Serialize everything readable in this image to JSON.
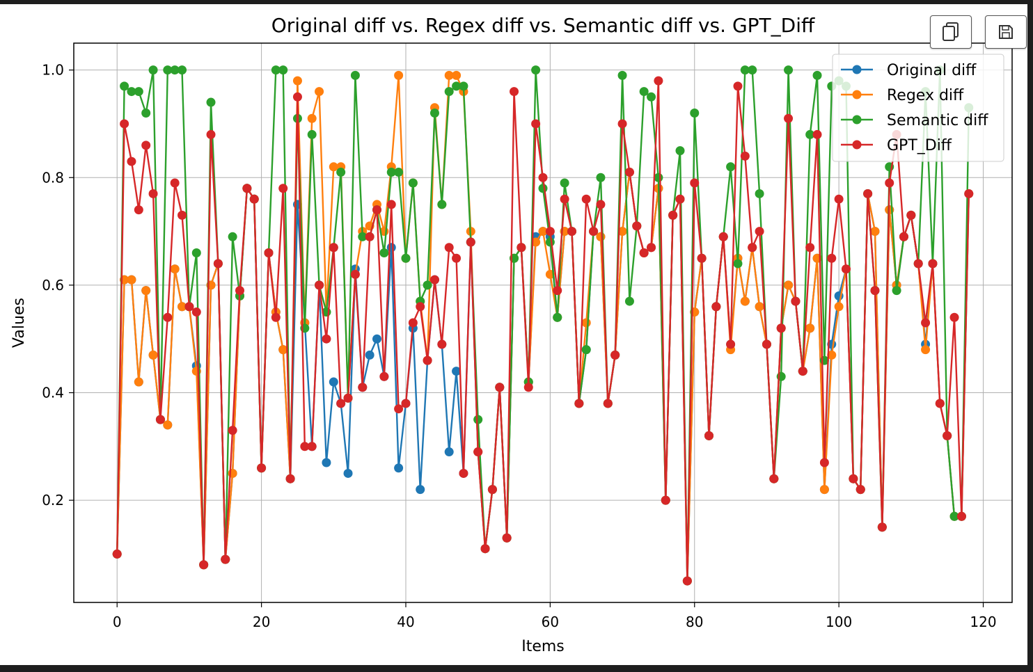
{
  "toolbar": {
    "copy_icon": "copy-icon",
    "save_icon": "floppy-disk-icon"
  },
  "chart_data": {
    "type": "line",
    "title": "Original diff vs. Regex diff vs. Semantic diff vs. GPT_Diff",
    "xlabel": "Items",
    "ylabel": "Values",
    "xlim": [
      -6,
      124
    ],
    "ylim": [
      0.01,
      1.05
    ],
    "xticks": [
      "0",
      "20",
      "40",
      "60",
      "80",
      "100",
      "120"
    ],
    "yticks": [
      "0.2",
      "0.4",
      "0.6",
      "0.8",
      "1.0"
    ],
    "grid": true,
    "legend_position": "upper-right",
    "series": [
      {
        "name": "Original diff",
        "color": "#1f77b4",
        "values": [
          0.1,
          0.61,
          0.61,
          0.42,
          0.59,
          0.47,
          0.35,
          0.34,
          0.63,
          0.56,
          0.56,
          0.45,
          0.08,
          0.6,
          0.64,
          0.09,
          0.25,
          0.58,
          0.78,
          0.76,
          0.26,
          0.66,
          0.55,
          0.48,
          0.24,
          0.75,
          0.53,
          0.3,
          0.6,
          0.27,
          0.42,
          0.38,
          0.25,
          0.63,
          0.41,
          0.47,
          0.5,
          0.43,
          0.67,
          0.26,
          0.38,
          0.52,
          0.22,
          0.46,
          0.61,
          0.49,
          0.29,
          0.44,
          0.25,
          0.68,
          0.29,
          0.11,
          0.22,
          0.41,
          0.13,
          0.65,
          0.67,
          0.42,
          0.69,
          0.7,
          0.69,
          0.54,
          0.7,
          0.7,
          0.38,
          0.48,
          0.7,
          0.69,
          0.38,
          0.47,
          0.7,
          0.81,
          0.71,
          0.66,
          0.67,
          0.78,
          0.2,
          0.73,
          0.76,
          0.05,
          0.55,
          0.65,
          0.32,
          0.56,
          0.69,
          0.49,
          0.65,
          0.57,
          0.67,
          0.56,
          0.49,
          0.24,
          0.52,
          0.6,
          0.57,
          0.44,
          0.52,
          0.65,
          0.22,
          0.49,
          0.58,
          0.63,
          0.24,
          0.22,
          0.77,
          0.7,
          0.15,
          0.74,
          0.6,
          0.69,
          0.73,
          0.64,
          0.49,
          0.64,
          0.38,
          0.32,
          0.17,
          0.17,
          0.77
        ]
      },
      {
        "name": "Regex diff",
        "color": "#ff7f0e",
        "values": [
          0.1,
          0.61,
          0.61,
          0.42,
          0.59,
          0.47,
          0.35,
          0.34,
          0.63,
          0.56,
          0.56,
          0.44,
          0.08,
          0.6,
          0.64,
          0.09,
          0.25,
          0.58,
          0.78,
          0.76,
          0.26,
          0.66,
          0.55,
          0.48,
          0.24,
          0.98,
          0.53,
          0.91,
          0.96,
          0.55,
          0.82,
          0.82,
          0.39,
          0.62,
          0.7,
          0.71,
          0.75,
          0.7,
          0.82,
          0.99,
          0.65,
          0.79,
          0.57,
          0.46,
          0.93,
          0.75,
          0.99,
          0.99,
          0.96,
          0.7,
          0.29,
          0.11,
          0.22,
          0.41,
          0.13,
          0.65,
          0.67,
          0.42,
          0.68,
          0.7,
          0.62,
          0.54,
          0.7,
          0.7,
          0.38,
          0.53,
          0.7,
          0.69,
          0.38,
          0.47,
          0.7,
          0.81,
          0.71,
          0.66,
          0.67,
          0.78,
          0.2,
          0.73,
          0.76,
          0.05,
          0.55,
          0.65,
          0.32,
          0.56,
          0.69,
          0.48,
          0.65,
          0.57,
          0.67,
          0.56,
          0.49,
          0.24,
          0.52,
          0.6,
          0.57,
          0.44,
          0.52,
          0.65,
          0.22,
          0.47,
          0.56,
          0.63,
          0.24,
          0.22,
          0.77,
          0.7,
          0.15,
          0.74,
          0.6,
          0.69,
          0.73,
          0.64,
          0.48,
          0.64,
          0.38,
          0.32,
          0.17,
          0.17,
          0.77
        ]
      },
      {
        "name": "Semantic diff",
        "color": "#2ca02c",
        "values": [
          0.1,
          0.97,
          0.96,
          0.96,
          0.92,
          1.0,
          0.35,
          1.0,
          1.0,
          1.0,
          0.56,
          0.66,
          0.08,
          0.94,
          0.64,
          0.09,
          0.69,
          0.58,
          0.78,
          0.76,
          0.26,
          0.66,
          1.0,
          1.0,
          0.24,
          0.91,
          0.52,
          0.88,
          0.6,
          0.55,
          0.67,
          0.81,
          0.39,
          0.99,
          0.69,
          0.69,
          0.74,
          0.66,
          0.81,
          0.81,
          0.65,
          0.79,
          0.57,
          0.6,
          0.92,
          0.75,
          0.96,
          0.97,
          0.97,
          0.68,
          0.35,
          0.11,
          0.22,
          0.41,
          0.13,
          0.65,
          0.67,
          0.42,
          1.0,
          0.78,
          0.68,
          0.54,
          0.79,
          0.7,
          0.38,
          0.48,
          0.7,
          0.8,
          0.38,
          0.47,
          0.99,
          0.57,
          0.71,
          0.96,
          0.95,
          0.8,
          0.2,
          0.73,
          0.85,
          0.05,
          0.92,
          0.65,
          0.32,
          0.56,
          0.69,
          0.82,
          0.64,
          1.0,
          1.0,
          0.77,
          0.49,
          0.24,
          0.43,
          1.0,
          0.57,
          0.44,
          0.88,
          0.99,
          0.46,
          0.97,
          0.98,
          0.97,
          0.24,
          0.22,
          0.77,
          0.59,
          0.15,
          0.82,
          0.59,
          0.69,
          0.73,
          0.64,
          0.96,
          0.64,
          1.0,
          0.32,
          0.17,
          0.17,
          0.93
        ]
      },
      {
        "name": "GPT_Diff",
        "color": "#d62728",
        "values": [
          0.1,
          0.9,
          0.83,
          0.74,
          0.86,
          0.77,
          0.35,
          0.54,
          0.79,
          0.73,
          0.56,
          0.55,
          0.08,
          0.88,
          0.64,
          0.09,
          0.33,
          0.59,
          0.78,
          0.76,
          0.26,
          0.66,
          0.54,
          0.78,
          0.24,
          0.95,
          0.3,
          0.3,
          0.6,
          0.5,
          0.67,
          0.38,
          0.39,
          0.62,
          0.41,
          0.69,
          0.74,
          0.43,
          0.75,
          0.37,
          0.38,
          0.53,
          0.56,
          0.46,
          0.61,
          0.49,
          0.67,
          0.65,
          0.25,
          0.68,
          0.29,
          0.11,
          0.22,
          0.41,
          0.13,
          0.96,
          0.67,
          0.41,
          0.9,
          0.8,
          0.7,
          0.59,
          0.76,
          0.7,
          0.38,
          0.76,
          0.7,
          0.75,
          0.38,
          0.47,
          0.9,
          0.81,
          0.71,
          0.66,
          0.67,
          0.98,
          0.2,
          0.73,
          0.76,
          0.05,
          0.79,
          0.65,
          0.32,
          0.56,
          0.69,
          0.49,
          0.97,
          0.84,
          0.67,
          0.7,
          0.49,
          0.24,
          0.52,
          0.91,
          0.57,
          0.44,
          0.67,
          0.88,
          0.27,
          0.65,
          0.76,
          0.63,
          0.24,
          0.22,
          0.77,
          0.59,
          0.15,
          0.79,
          0.88,
          0.69,
          0.73,
          0.64,
          0.53,
          0.64,
          0.38,
          0.32,
          0.54,
          0.17,
          0.77
        ]
      }
    ]
  }
}
